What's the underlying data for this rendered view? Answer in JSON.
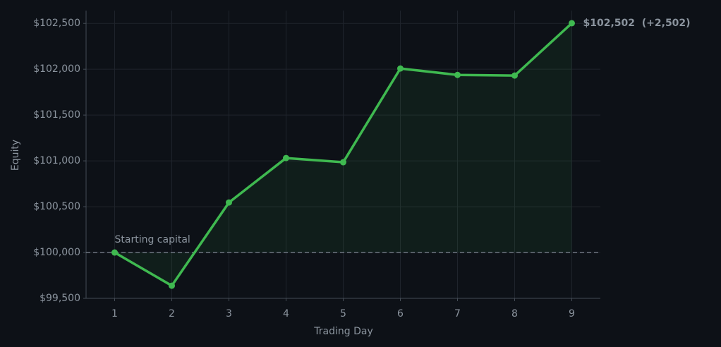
{
  "chart_data": {
    "type": "line",
    "x_label": "Trading Day",
    "y_label": "Equity",
    "x": [
      1,
      2,
      3,
      4,
      5,
      6,
      7,
      8,
      9
    ],
    "series": [
      {
        "name": "Equity",
        "color": "#3fb950",
        "values": [
          100000,
          99638,
          100546,
          101031,
          100985,
          102008,
          101938,
          101931,
          102502
        ]
      }
    ],
    "baseline": 100000,
    "baseline_label": "Starting capital",
    "annotation": "$102,502  (+2,502)",
    "xlim": [
      0.5,
      9.5
    ],
    "xticks": [
      1,
      2,
      3,
      4,
      5,
      6,
      7,
      8,
      9
    ],
    "ylim": [
      99500,
      102640
    ],
    "yticks": [
      {
        "value": 99500,
        "label": "$99,500"
      },
      {
        "value": 100000,
        "label": "$100,000"
      },
      {
        "value": 100500,
        "label": "$100,500"
      },
      {
        "value": 101000,
        "label": "$101,000"
      },
      {
        "value": 101500,
        "label": "$101,500"
      },
      {
        "value": 102000,
        "label": "$102,000"
      },
      {
        "value": 102500,
        "label": "$102,500"
      }
    ],
    "grid": true
  }
}
